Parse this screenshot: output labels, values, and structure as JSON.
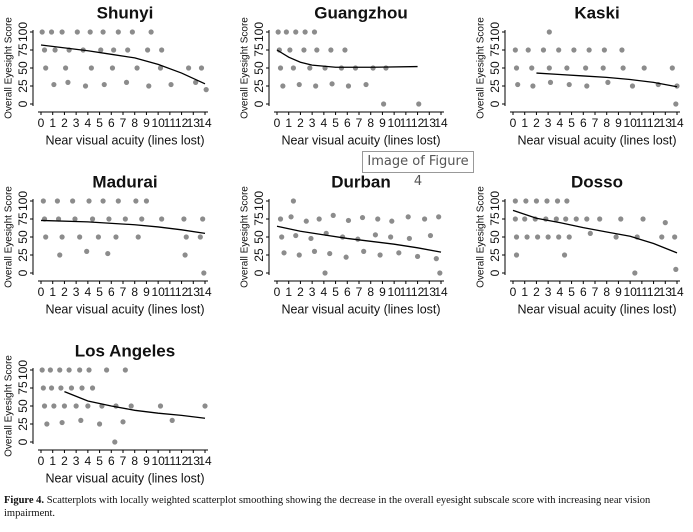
{
  "chart_data": [
    {
      "type": "scatter",
      "title": "Shunyi",
      "x_label": "Near visual acuity (lines lost)",
      "y_label": "Overall Eyesight Score",
      "xlim": [
        0,
        14
      ],
      "ylim": [
        0,
        100
      ],
      "xticks": [
        0,
        1,
        2,
        3,
        4,
        5,
        6,
        7,
        8,
        9,
        10,
        11,
        12,
        13,
        14
      ],
      "yticks": [
        0,
        25,
        50,
        75,
        100
      ],
      "points": {
        "color": "#8c8c8c",
        "x": [
          0.1,
          0.9,
          1.8,
          3.1,
          4.2,
          5.3,
          6.6,
          7.8,
          9.4,
          0.3,
          1.2,
          2.4,
          3.6,
          5.1,
          6.2,
          7.4,
          9.1,
          10.3,
          0.4,
          2.1,
          4.3,
          6.1,
          8.2,
          10.2,
          12.6,
          13.7,
          1.1,
          2.3,
          3.8,
          5.4,
          7.3,
          9.2,
          11.1,
          13.2,
          14.1
        ],
        "y": [
          100,
          100,
          100,
          100,
          100,
          100,
          100,
          100,
          100,
          75,
          75,
          75,
          75,
          75,
          75,
          75,
          75,
          75,
          50,
          50,
          50,
          50,
          50,
          50,
          50,
          50,
          27,
          30,
          25,
          27,
          30,
          25,
          27,
          30,
          20
        ]
      },
      "smooth": {
        "color": "#000000",
        "x": [
          0,
          2,
          4,
          6,
          8,
          10,
          12,
          14
        ],
        "y": [
          82,
          78,
          74,
          69,
          64,
          55,
          43,
          28
        ]
      }
    },
    {
      "type": "scatter",
      "title": "Guangzhou",
      "x_label": "Near visual acuity (lines lost)",
      "y_label": "Overall Eyesight Score",
      "xlim": [
        0,
        14
      ],
      "ylim": [
        0,
        100
      ],
      "xticks": [
        0,
        1,
        2,
        3,
        4,
        5,
        6,
        7,
        8,
        9,
        10,
        11,
        12,
        13,
        14
      ],
      "yticks": [
        0,
        25,
        50,
        75,
        100
      ],
      "points": {
        "color": "#8c8c8c",
        "x": [
          0.1,
          0.8,
          1.6,
          2.4,
          3.2,
          0.2,
          1.1,
          2.3,
          3.4,
          4.6,
          5.8,
          0.3,
          1.4,
          2.8,
          4.1,
          5.5,
          6.7,
          8.2,
          9.3,
          0.5,
          1.9,
          3.3,
          4.7,
          6.1,
          7.6,
          9.1,
          12.1
        ],
        "y": [
          100,
          100,
          100,
          100,
          100,
          75,
          75,
          75,
          75,
          75,
          75,
          50,
          50,
          50,
          50,
          50,
          50,
          50,
          50,
          25,
          27,
          25,
          28,
          25,
          27,
          0,
          0
        ]
      },
      "smooth": {
        "color": "#000000",
        "x": [
          0,
          1,
          2,
          3,
          5,
          8,
          12
        ],
        "y": [
          75,
          65,
          58,
          54,
          51,
          51,
          52
        ]
      }
    },
    {
      "type": "scatter",
      "title": "Kaski",
      "x_label": "Near visual acuity (lines lost)",
      "y_label": "Overall Eyesight Score",
      "xlim": [
        0,
        14
      ],
      "ylim": [
        0,
        100
      ],
      "xticks": [
        0,
        1,
        2,
        3,
        4,
        5,
        6,
        7,
        8,
        9,
        10,
        11,
        12,
        13,
        14
      ],
      "yticks": [
        0,
        25,
        50,
        75,
        100
      ],
      "points": {
        "color": "#8c8c8c",
        "x": [
          0.2,
          1.3,
          2.6,
          3.9,
          5.2,
          6.5,
          7.8,
          9.3,
          0.3,
          1.6,
          3.1,
          4.6,
          6.2,
          7.7,
          9.4,
          11.2,
          13.6,
          0.4,
          1.7,
          3.2,
          4.8,
          6.3,
          8.1,
          10.2,
          12.4,
          14.0,
          3.1,
          13.9
        ],
        "y": [
          75,
          75,
          75,
          75,
          75,
          75,
          75,
          75,
          50,
          50,
          50,
          50,
          50,
          50,
          50,
          50,
          50,
          27,
          25,
          30,
          27,
          25,
          30,
          25,
          27,
          25,
          100,
          0
        ]
      },
      "smooth": {
        "color": "#000000",
        "x": [
          2,
          4,
          6,
          8,
          10,
          12,
          14
        ],
        "y": [
          43,
          41,
          39,
          37,
          34,
          30,
          24
        ]
      }
    },
    {
      "type": "scatter",
      "title": "Madurai",
      "x_label": "Near visual acuity (lines lost)",
      "y_label": "Overall Eyesight Score",
      "xlim": [
        0,
        14
      ],
      "ylim": [
        0,
        100
      ],
      "xticks": [
        0,
        1,
        2,
        3,
        4,
        5,
        6,
        7,
        8,
        9,
        10,
        11,
        12,
        13,
        14
      ],
      "yticks": [
        0,
        25,
        50,
        75,
        100
      ],
      "points": {
        "color": "#8c8c8c",
        "x": [
          0.2,
          1.4,
          2.7,
          4.1,
          5.3,
          6.6,
          8.1,
          9.0,
          0.3,
          1.5,
          2.9,
          4.4,
          5.8,
          7.2,
          8.6,
          10.3,
          12.2,
          13.8,
          0.4,
          1.8,
          3.3,
          4.9,
          6.4,
          8.3,
          12.4,
          13.6,
          1.6,
          3.9,
          5.7,
          12.3,
          13.9
        ],
        "y": [
          100,
          100,
          100,
          100,
          100,
          100,
          100,
          100,
          75,
          75,
          75,
          75,
          75,
          75,
          75,
          75,
          75,
          75,
          50,
          50,
          50,
          50,
          50,
          50,
          50,
          50,
          25,
          30,
          27,
          25,
          0
        ]
      },
      "smooth": {
        "color": "#000000",
        "x": [
          0,
          4,
          8,
          10,
          12,
          14
        ],
        "y": [
          73,
          71,
          67,
          64,
          60,
          55
        ]
      }
    },
    {
      "type": "scatter",
      "title": "Durban",
      "x_label": "Near visual acuity (lines lost)",
      "y_label": "Overall Eyesight Score",
      "xlim": [
        0,
        14
      ],
      "ylim": [
        0,
        100
      ],
      "xticks": [
        0,
        1,
        2,
        3,
        4,
        5,
        6,
        7,
        8,
        9,
        10,
        11,
        12,
        13,
        14
      ],
      "yticks": [
        0,
        25,
        50,
        75,
        100
      ],
      "points": {
        "color": "#8c8c8c",
        "x": [
          0.3,
          1.2,
          2.5,
          3.6,
          4.8,
          6.1,
          7.3,
          8.6,
          9.8,
          11.2,
          12.6,
          13.8,
          0.4,
          1.6,
          2.9,
          4.2,
          5.6,
          6.9,
          8.4,
          9.7,
          11.3,
          13.1,
          0.6,
          1.9,
          3.2,
          4.5,
          5.9,
          7.4,
          8.8,
          10.4,
          12.0,
          13.6,
          1.4,
          4.1,
          13.9
        ],
        "y": [
          75,
          78,
          72,
          75,
          80,
          73,
          77,
          75,
          72,
          78,
          75,
          78,
          50,
          52,
          48,
          55,
          50,
          47,
          53,
          50,
          48,
          52,
          28,
          25,
          30,
          27,
          22,
          30,
          25,
          28,
          23,
          20,
          100,
          0,
          0
        ]
      },
      "smooth": {
        "color": "#000000",
        "x": [
          0,
          2,
          4,
          6,
          8,
          10,
          12,
          14
        ],
        "y": [
          65,
          58,
          53,
          48,
          44,
          40,
          35,
          29
        ]
      }
    },
    {
      "type": "scatter",
      "title": "Dosso",
      "x_label": "Near visual acuity (lines lost)",
      "y_label": "Overall Eyesight Score",
      "xlim": [
        0,
        14
      ],
      "ylim": [
        0,
        100
      ],
      "xticks": [
        0,
        1,
        2,
        3,
        4,
        5,
        6,
        7,
        8,
        9,
        10,
        11,
        12,
        13,
        14
      ],
      "yticks": [
        0,
        25,
        50,
        75,
        100
      ],
      "points": {
        "color": "#8c8c8c",
        "x": [
          0.2,
          1.1,
          2.0,
          2.9,
          3.8,
          4.6,
          0.2,
          1.0,
          1.9,
          2.8,
          3.7,
          4.5,
          5.4,
          6.3,
          7.4,
          9.2,
          11.1,
          13.0,
          0.3,
          1.2,
          2.1,
          3.0,
          3.9,
          4.8,
          6.6,
          8.8,
          10.6,
          12.7,
          13.8,
          0.3,
          4.4,
          10.4,
          13.9
        ],
        "y": [
          100,
          100,
          100,
          100,
          100,
          100,
          75,
          75,
          75,
          75,
          75,
          75,
          75,
          75,
          75,
          75,
          75,
          70,
          50,
          50,
          50,
          50,
          50,
          50,
          55,
          50,
          50,
          50,
          50,
          25,
          25,
          0,
          5
        ]
      },
      "smooth": {
        "color": "#000000",
        "x": [
          0,
          2,
          4,
          6,
          8,
          10,
          12,
          14
        ],
        "y": [
          87,
          76,
          70,
          63,
          57,
          51,
          41,
          28
        ]
      }
    },
    {
      "type": "scatter",
      "title": "Los Angeles",
      "x_label": "Near visual acuity (lines lost)",
      "y_label": "Overall Eyesight Score",
      "xlim": [
        0,
        14
      ],
      "ylim": [
        0,
        100
      ],
      "xticks": [
        0,
        1,
        2,
        3,
        4,
        5,
        6,
        7,
        8,
        9,
        10,
        11,
        12,
        13,
        14
      ],
      "yticks": [
        0,
        25,
        50,
        75,
        100
      ],
      "points": {
        "color": "#8c8c8c",
        "x": [
          0.1,
          0.8,
          1.6,
          2.4,
          3.3,
          4.1,
          5.6,
          7.2,
          0.2,
          0.9,
          1.7,
          2.6,
          3.5,
          4.4,
          0.3,
          1.1,
          2.0,
          3.0,
          4.0,
          5.2,
          6.4,
          7.7,
          10.2,
          14.0,
          0.5,
          1.8,
          3.4,
          5.0,
          7.0,
          11.2,
          6.3
        ],
        "y": [
          100,
          100,
          100,
          100,
          100,
          100,
          100,
          100,
          75,
          75,
          75,
          75,
          75,
          75,
          50,
          50,
          50,
          50,
          50,
          50,
          50,
          50,
          50,
          50,
          25,
          27,
          30,
          25,
          28,
          30,
          0
        ]
      },
      "smooth": {
        "color": "#000000",
        "x": [
          2,
          4,
          6,
          8,
          10,
          12,
          14
        ],
        "y": [
          70,
          57,
          50,
          44,
          40,
          37,
          33
        ]
      }
    }
  ],
  "tooltip": "Image of Figure 4",
  "caption": {
    "label": "Figure 4.",
    "text": "Scatterplots with locally weighted scatterplot smoothing showing the decrease in the overall eyesight subscale score with increasing near vision impairment."
  }
}
